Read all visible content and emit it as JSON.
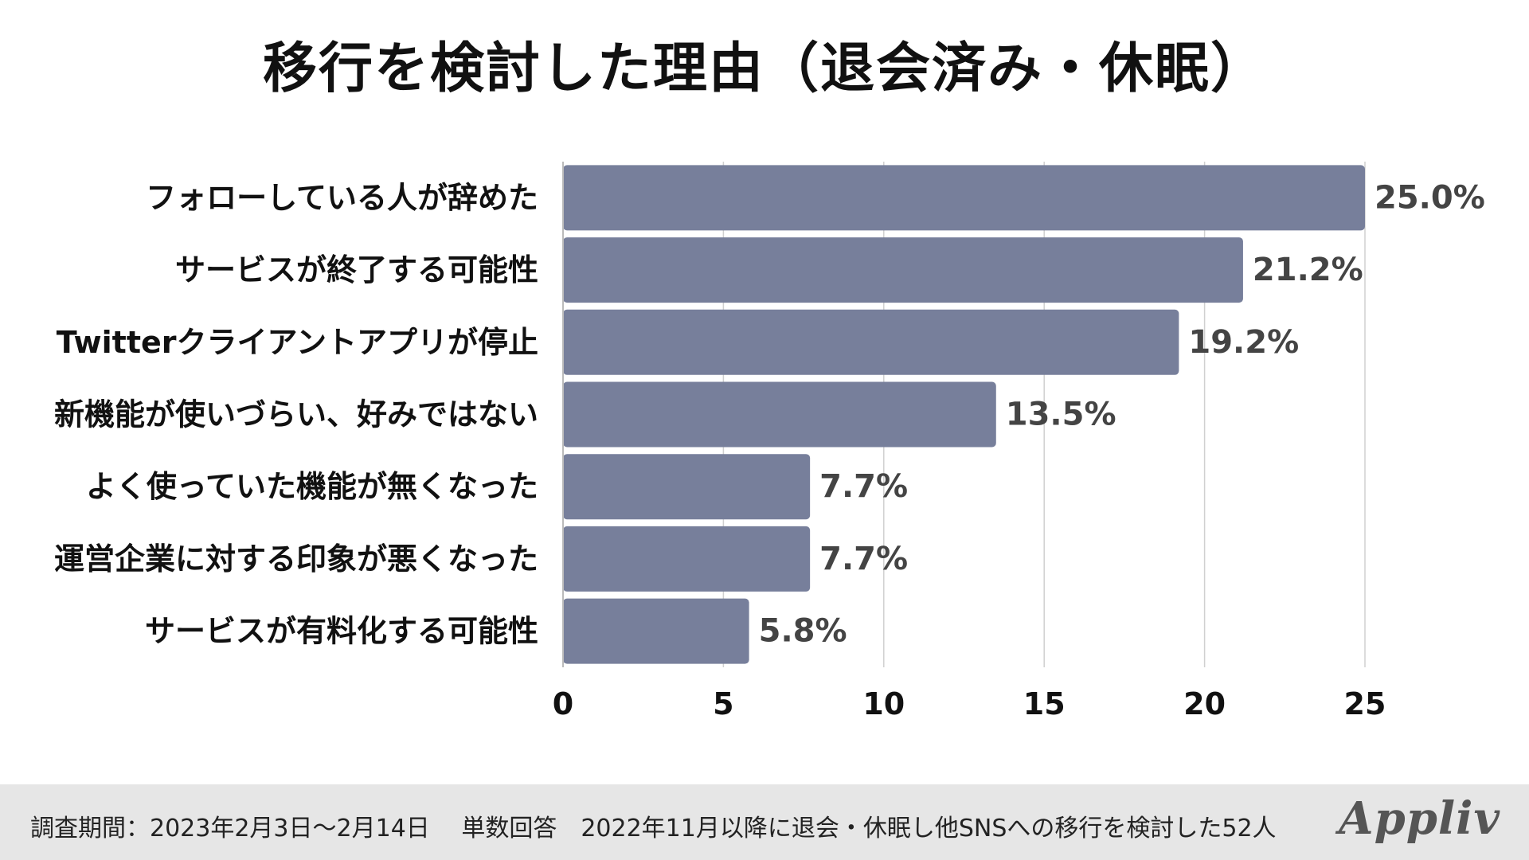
{
  "title": "移行を検討した理由（退会済み・休眠）",
  "chart_data": {
    "type": "bar",
    "orientation": "horizontal",
    "title": "移行を検討した理由（退会済み・休眠）",
    "categories": [
      "フォローしている人が辞めた",
      "サービスが終了する可能性",
      "Twitterクライアントアプリが停止",
      "新機能が使いづらい、好みではない",
      "よく使っていた機能が無くなった",
      "運営企業に対する印象が悪くなった",
      "サービスが有料化する可能性"
    ],
    "values": [
      25.0,
      21.2,
      19.2,
      13.5,
      7.7,
      7.7,
      5.8
    ],
    "value_labels": [
      "25.0%",
      "21.2%",
      "19.2%",
      "13.5%",
      "7.7%",
      "7.7%",
      "5.8%"
    ],
    "xlim": [
      0,
      25
    ],
    "xticks": [
      0,
      5,
      10,
      15,
      20,
      25
    ],
    "xlabel": "",
    "ylabel": "",
    "grid": true,
    "bar_color": "#777f9b",
    "grid_color": "#d0d0d0"
  },
  "footer": {
    "note": "調査期間：2023年2月3日～2月14日　 単数回答　2022年11月以降に退会・休眠し他SNSへの移行を検討した52人",
    "brand": "Appliv"
  }
}
